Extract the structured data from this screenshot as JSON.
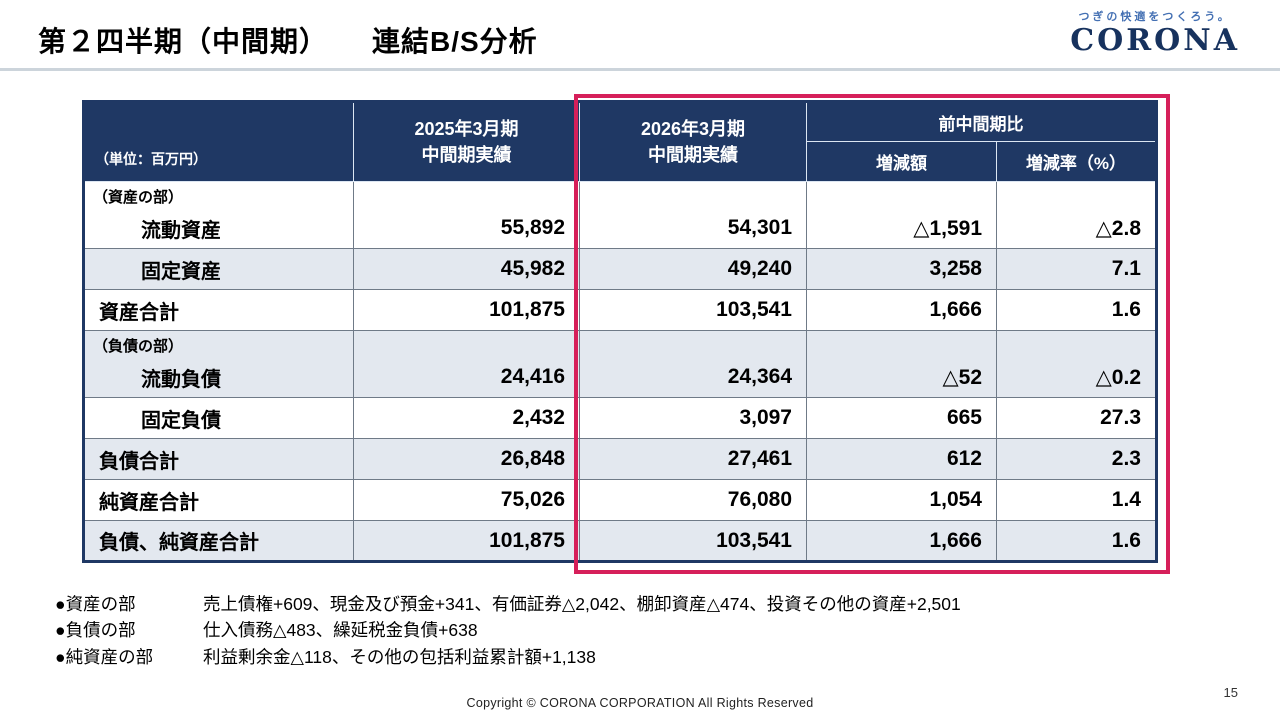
{
  "colors": {
    "navy": "#1f3864",
    "accent_red": "#d61f5a",
    "row_shade": "#e3e8ef",
    "brand_navy": "#17325e",
    "tagline_blue": "#4470b3",
    "rule_gray": "#ccd4db"
  },
  "header": {
    "title": "第２四半期（中間期）　　連結B/S分析",
    "logo": {
      "tagline": "つぎの快適をつくろう。",
      "brand": "CORONA"
    }
  },
  "table": {
    "columns": {
      "unit": "（単位：百万円）",
      "fy2025_line1": "2025年3月期",
      "fy2025_line2": "中間期実績",
      "fy2026_line1": "2026年3月期",
      "fy2026_line2": "中間期実績",
      "comparison": "前中間期比",
      "diff": "増減額",
      "rate": "増減率（%）"
    },
    "rows": [
      {
        "section": "（資産の部）",
        "label": "流動資産",
        "v2025": "55,892",
        "v2026": "54,301",
        "diff": "△1,591",
        "rate": "△2.8"
      },
      {
        "label": "固定資産",
        "v2025": "45,982",
        "v2026": "49,240",
        "diff": "3,258",
        "rate": "7.1"
      },
      {
        "label": "資産合計",
        "v2025": "101,875",
        "v2026": "103,541",
        "diff": "1,666",
        "rate": "1.6"
      },
      {
        "section": "（負債の部）",
        "label": "流動負債",
        "v2025": "24,416",
        "v2026": "24,364",
        "diff": "△52",
        "rate": "△0.2"
      },
      {
        "label": "固定負債",
        "v2025": "2,432",
        "v2026": "3,097",
        "diff": "665",
        "rate": "27.3"
      },
      {
        "label": "負債合計",
        "v2025": "26,848",
        "v2026": "27,461",
        "diff": "612",
        "rate": "2.3"
      },
      {
        "label": "純資産合計",
        "v2025": "75,026",
        "v2026": "76,080",
        "diff": "1,054",
        "rate": "1.4"
      },
      {
        "label": "負債、純資産合計",
        "v2025": "101,875",
        "v2026": "103,541",
        "diff": "1,666",
        "rate": "1.6"
      }
    ]
  },
  "notes": [
    {
      "label": "●資産の部",
      "text": "売上債権+609、現金及び預金+341、有価証券△2,042、棚卸資産△474、投資その他の資産+2,501"
    },
    {
      "label": "●負債の部",
      "text": "仕入債務△483、繰延税金負債+638"
    },
    {
      "label": "●純資産の部",
      "text": "利益剰余金△118、その他の包括利益累計額+1,138"
    }
  ],
  "footer": {
    "copyright": "Copyright © CORONA CORPORATION All Rights Reserved",
    "page": "15"
  }
}
